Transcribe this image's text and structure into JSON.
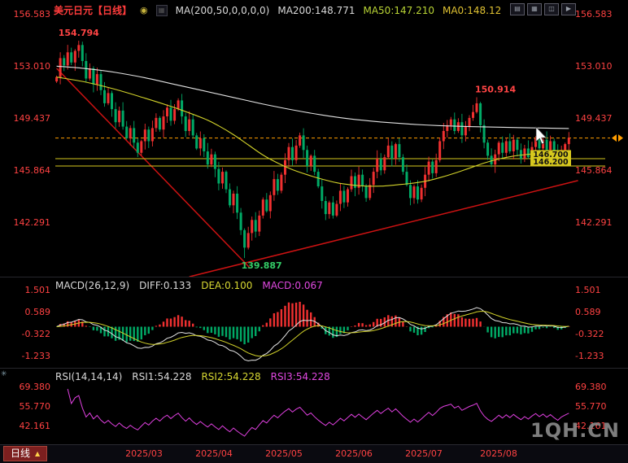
{
  "header": {
    "symbol_title": "美元日元【日线】",
    "link_icon": "◉",
    "indicator_icon": "▦",
    "ma_settings": "MA(200,50,0,0,0,0)",
    "ma200": "MA200:148.771",
    "ma50": "MA50:147.210",
    "ma0": "MA0:148.12"
  },
  "window_buttons": [
    {
      "name": "layout-single-icon",
      "glyph": "▤"
    },
    {
      "name": "layout-grid-icon",
      "glyph": "▦"
    },
    {
      "name": "layout-split-icon",
      "glyph": "◫"
    },
    {
      "name": "play-icon",
      "glyph": "▶"
    }
  ],
  "macd_panel": {
    "title": "MACD(26,12,9)",
    "diff_label": "DIFF:0.133",
    "dea_label": "DEA:0.100",
    "macd_label": "MACD:0.067"
  },
  "rsi_panel": {
    "title": "RSI(14,14,14)",
    "rsi1_label": "RSI1:54.228",
    "rsi2_label": "RSI2:54.228",
    "rsi3_label": "RSI3:54.228"
  },
  "watermark": "1QH.CN",
  "bottom_bar": {
    "tab_label": "日线",
    "tab_arrow": "▲"
  },
  "chart_data": {
    "type": "candlestick",
    "title": "USD/JPY Daily (美元日元 日线)",
    "y_ticks": [
      156.583,
      153.01,
      149.437,
      145.864,
      142.291
    ],
    "y_tick_labels": [
      "156.583",
      "153.010",
      "149.437",
      "145.864",
      "142.291"
    ],
    "x_ticks": [
      "2025/03",
      "2025/04",
      "2025/05",
      "2025/06",
      "2025/07",
      "2025/08"
    ],
    "x_tick_idx": [
      24,
      43,
      62,
      81,
      100,
      120
    ],
    "first_open": 152.0,
    "closes": [
      152.3,
      153.6,
      153.1,
      154.0,
      153.3,
      154.1,
      154.5,
      153.4,
      152.2,
      152.9,
      151.8,
      152.5,
      151.4,
      150.5,
      151.2,
      150.1,
      149.2,
      150.0,
      148.9,
      148.1,
      148.8,
      147.8,
      147.1,
      147.9,
      148.7,
      147.9,
      148.8,
      149.5,
      148.7,
      149.6,
      150.2,
      149.3,
      150.1,
      150.7,
      149.6,
      148.6,
      149.4,
      148.3,
      147.4,
      148.1,
      147.2,
      146.3,
      147.0,
      146.0,
      145.0,
      145.8,
      144.6,
      143.5,
      144.3,
      143.0,
      141.8,
      140.6,
      141.6,
      142.5,
      141.7,
      142.8,
      143.9,
      143.1,
      144.2,
      145.3,
      144.5,
      145.6,
      146.6,
      147.5,
      146.6,
      147.6,
      148.3,
      147.3,
      146.2,
      146.9,
      145.8,
      144.8,
      143.8,
      142.9,
      143.7,
      142.8,
      143.6,
      144.5,
      143.7,
      144.6,
      145.5,
      144.7,
      145.6,
      144.8,
      144.0,
      144.9,
      145.8,
      146.7,
      145.9,
      146.8,
      147.6,
      146.7,
      147.7,
      146.8,
      145.8,
      144.9,
      144.0,
      144.8,
      143.9,
      144.7,
      145.6,
      146.5,
      145.7,
      146.6,
      147.9,
      148.6,
      149.0,
      149.4,
      148.6,
      149.2,
      148.3,
      148.9,
      149.5,
      149.9,
      150.5,
      149.0,
      147.8,
      146.9,
      146.3,
      147.0,
      147.8,
      147.1,
      147.9,
      147.2,
      148.0,
      147.3,
      146.7,
      147.4,
      146.8,
      147.5,
      148.1,
      147.4,
      148.0,
      147.3,
      147.9,
      147.2,
      146.6,
      147.3,
      147.7,
      148.12
    ],
    "extremes": {
      "high_idx": 6,
      "high": 154.794,
      "low_idx": 51,
      "low": 139.887,
      "spike_idx": 114,
      "spike_high": 150.914
    },
    "ma200": {
      "color": "#e2e2e2",
      "points": [
        [
          0,
          153.05
        ],
        [
          8,
          152.88
        ],
        [
          16,
          152.62
        ],
        [
          24,
          152.25
        ],
        [
          32,
          151.8
        ],
        [
          40,
          151.35
        ],
        [
          48,
          150.9
        ],
        [
          56,
          150.45
        ],
        [
          64,
          150.05
        ],
        [
          72,
          149.7
        ],
        [
          80,
          149.42
        ],
        [
          88,
          149.22
        ],
        [
          96,
          149.07
        ],
        [
          104,
          148.97
        ],
        [
          112,
          148.9
        ],
        [
          120,
          148.86
        ],
        [
          128,
          148.82
        ],
        [
          139,
          148.771
        ]
      ]
    },
    "ma50": {
      "color": "#d2d22a",
      "points": [
        [
          0,
          152.3
        ],
        [
          8,
          151.95
        ],
        [
          16,
          151.45
        ],
        [
          24,
          150.85
        ],
        [
          32,
          150.2
        ],
        [
          40,
          149.45
        ],
        [
          44,
          148.95
        ],
        [
          48,
          148.35
        ],
        [
          52,
          147.65
        ],
        [
          56,
          146.95
        ],
        [
          60,
          146.4
        ],
        [
          64,
          145.95
        ],
        [
          68,
          145.6
        ],
        [
          72,
          145.3
        ],
        [
          76,
          145.05
        ],
        [
          80,
          144.9
        ],
        [
          84,
          144.82
        ],
        [
          88,
          144.82
        ],
        [
          92,
          144.9
        ],
        [
          96,
          145.0
        ],
        [
          100,
          145.15
        ],
        [
          104,
          145.4
        ],
        [
          108,
          145.7
        ],
        [
          112,
          146.05
        ],
        [
          116,
          146.4
        ],
        [
          120,
          146.68
        ],
        [
          124,
          146.88
        ],
        [
          128,
          147.0
        ],
        [
          132,
          147.1
        ],
        [
          136,
          147.17
        ],
        [
          139,
          147.21
        ]
      ]
    },
    "trend_lines": [
      {
        "from": [
          0,
          152.9
        ],
        "to": [
          52.5,
          139.2
        ],
        "color": "#cc1212"
      },
      {
        "from": [
          36,
          138.6
        ],
        "to": [
          141.5,
          145.2
        ],
        "color": "#cc1212"
      }
    ],
    "h_lines": [
      {
        "price": 146.7,
        "label": "146.700",
        "color": "#d6c81e"
      },
      {
        "price": 146.2,
        "label": "146.200",
        "color": "#d6c81e"
      }
    ],
    "current_price": {
      "price": 148.12,
      "color": "#ff9d00"
    },
    "annotations": [
      {
        "text": "154.794",
        "idx": 6,
        "price": 154.794,
        "color": "#ff4444",
        "pos": "above"
      },
      {
        "text": "150.914",
        "idx": 114,
        "price": 150.914,
        "color": "#ff4444",
        "pos": "above-right"
      },
      {
        "text": "139.887",
        "idx": 51,
        "price": 139.887,
        "color": "#33cc66",
        "pos": "below-right"
      }
    ],
    "colors": {
      "up": "#f03030",
      "down": "#00aa66",
      "diff_line": "#e2e2e2",
      "dea_line": "#d2d22a",
      "rsi_line": "#e040e0"
    },
    "macd": {
      "fast": 12,
      "slow": 26,
      "signal": 9,
      "tick_labels": [
        "1.501",
        "0.589",
        "-0.322",
        "-1.233"
      ]
    },
    "rsi": {
      "period": 14,
      "tick_labels": [
        "69.380",
        "55.770",
        "42.161"
      ]
    }
  }
}
